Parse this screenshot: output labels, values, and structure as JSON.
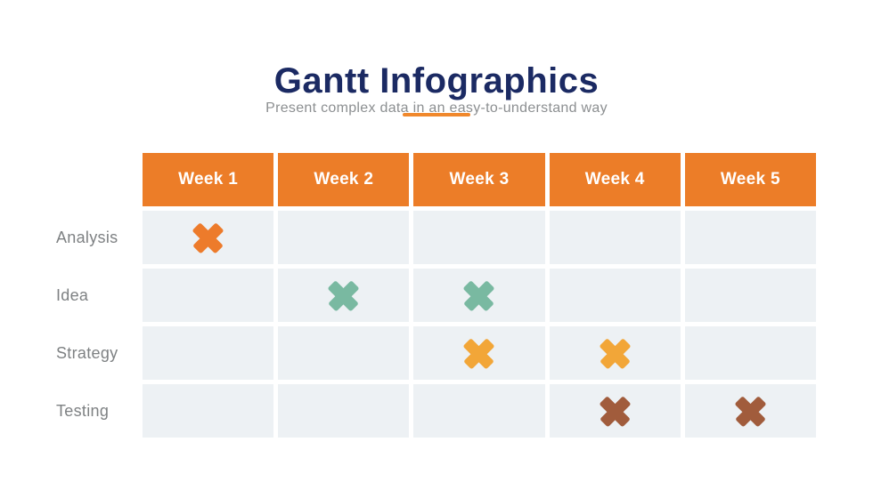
{
  "page": {
    "title": "Gantt Infographics",
    "subtitle": "Present complex data in an easy-to-understand way"
  },
  "colors": {
    "title": "#1B2A63",
    "subtitle": "#8C8F91",
    "divider": "#F0882C",
    "header_bg": "#EC7D28",
    "header_text": "#FFFFFF",
    "cell_bg": "#EDF1F4",
    "row_label": "#7E8183"
  },
  "chart_data": {
    "type": "table",
    "title": "Gantt Infographics",
    "subtitle": "Present complex data in an easy-to-understand way",
    "columns": [
      "Week 1",
      "Week 2",
      "Week 3",
      "Week 4",
      "Week 5"
    ],
    "rows": [
      {
        "label": "Analysis",
        "marks": [
          1,
          0,
          0,
          0,
          0
        ],
        "mark_color": "#ED7B2B",
        "mark_icon": "x-mark-icon"
      },
      {
        "label": "Idea",
        "marks": [
          0,
          1,
          1,
          0,
          0
        ],
        "mark_color": "#79B9A1",
        "mark_icon": "x-mark-icon"
      },
      {
        "label": "Strategy",
        "marks": [
          0,
          0,
          1,
          1,
          0
        ],
        "mark_color": "#F2A638",
        "mark_icon": "x-mark-icon"
      },
      {
        "label": "Testing",
        "marks": [
          0,
          0,
          0,
          1,
          1
        ],
        "mark_color": "#A15C3C",
        "mark_icon": "x-mark-icon"
      }
    ],
    "legend_position": "none",
    "grid": "cells-with-gaps"
  }
}
